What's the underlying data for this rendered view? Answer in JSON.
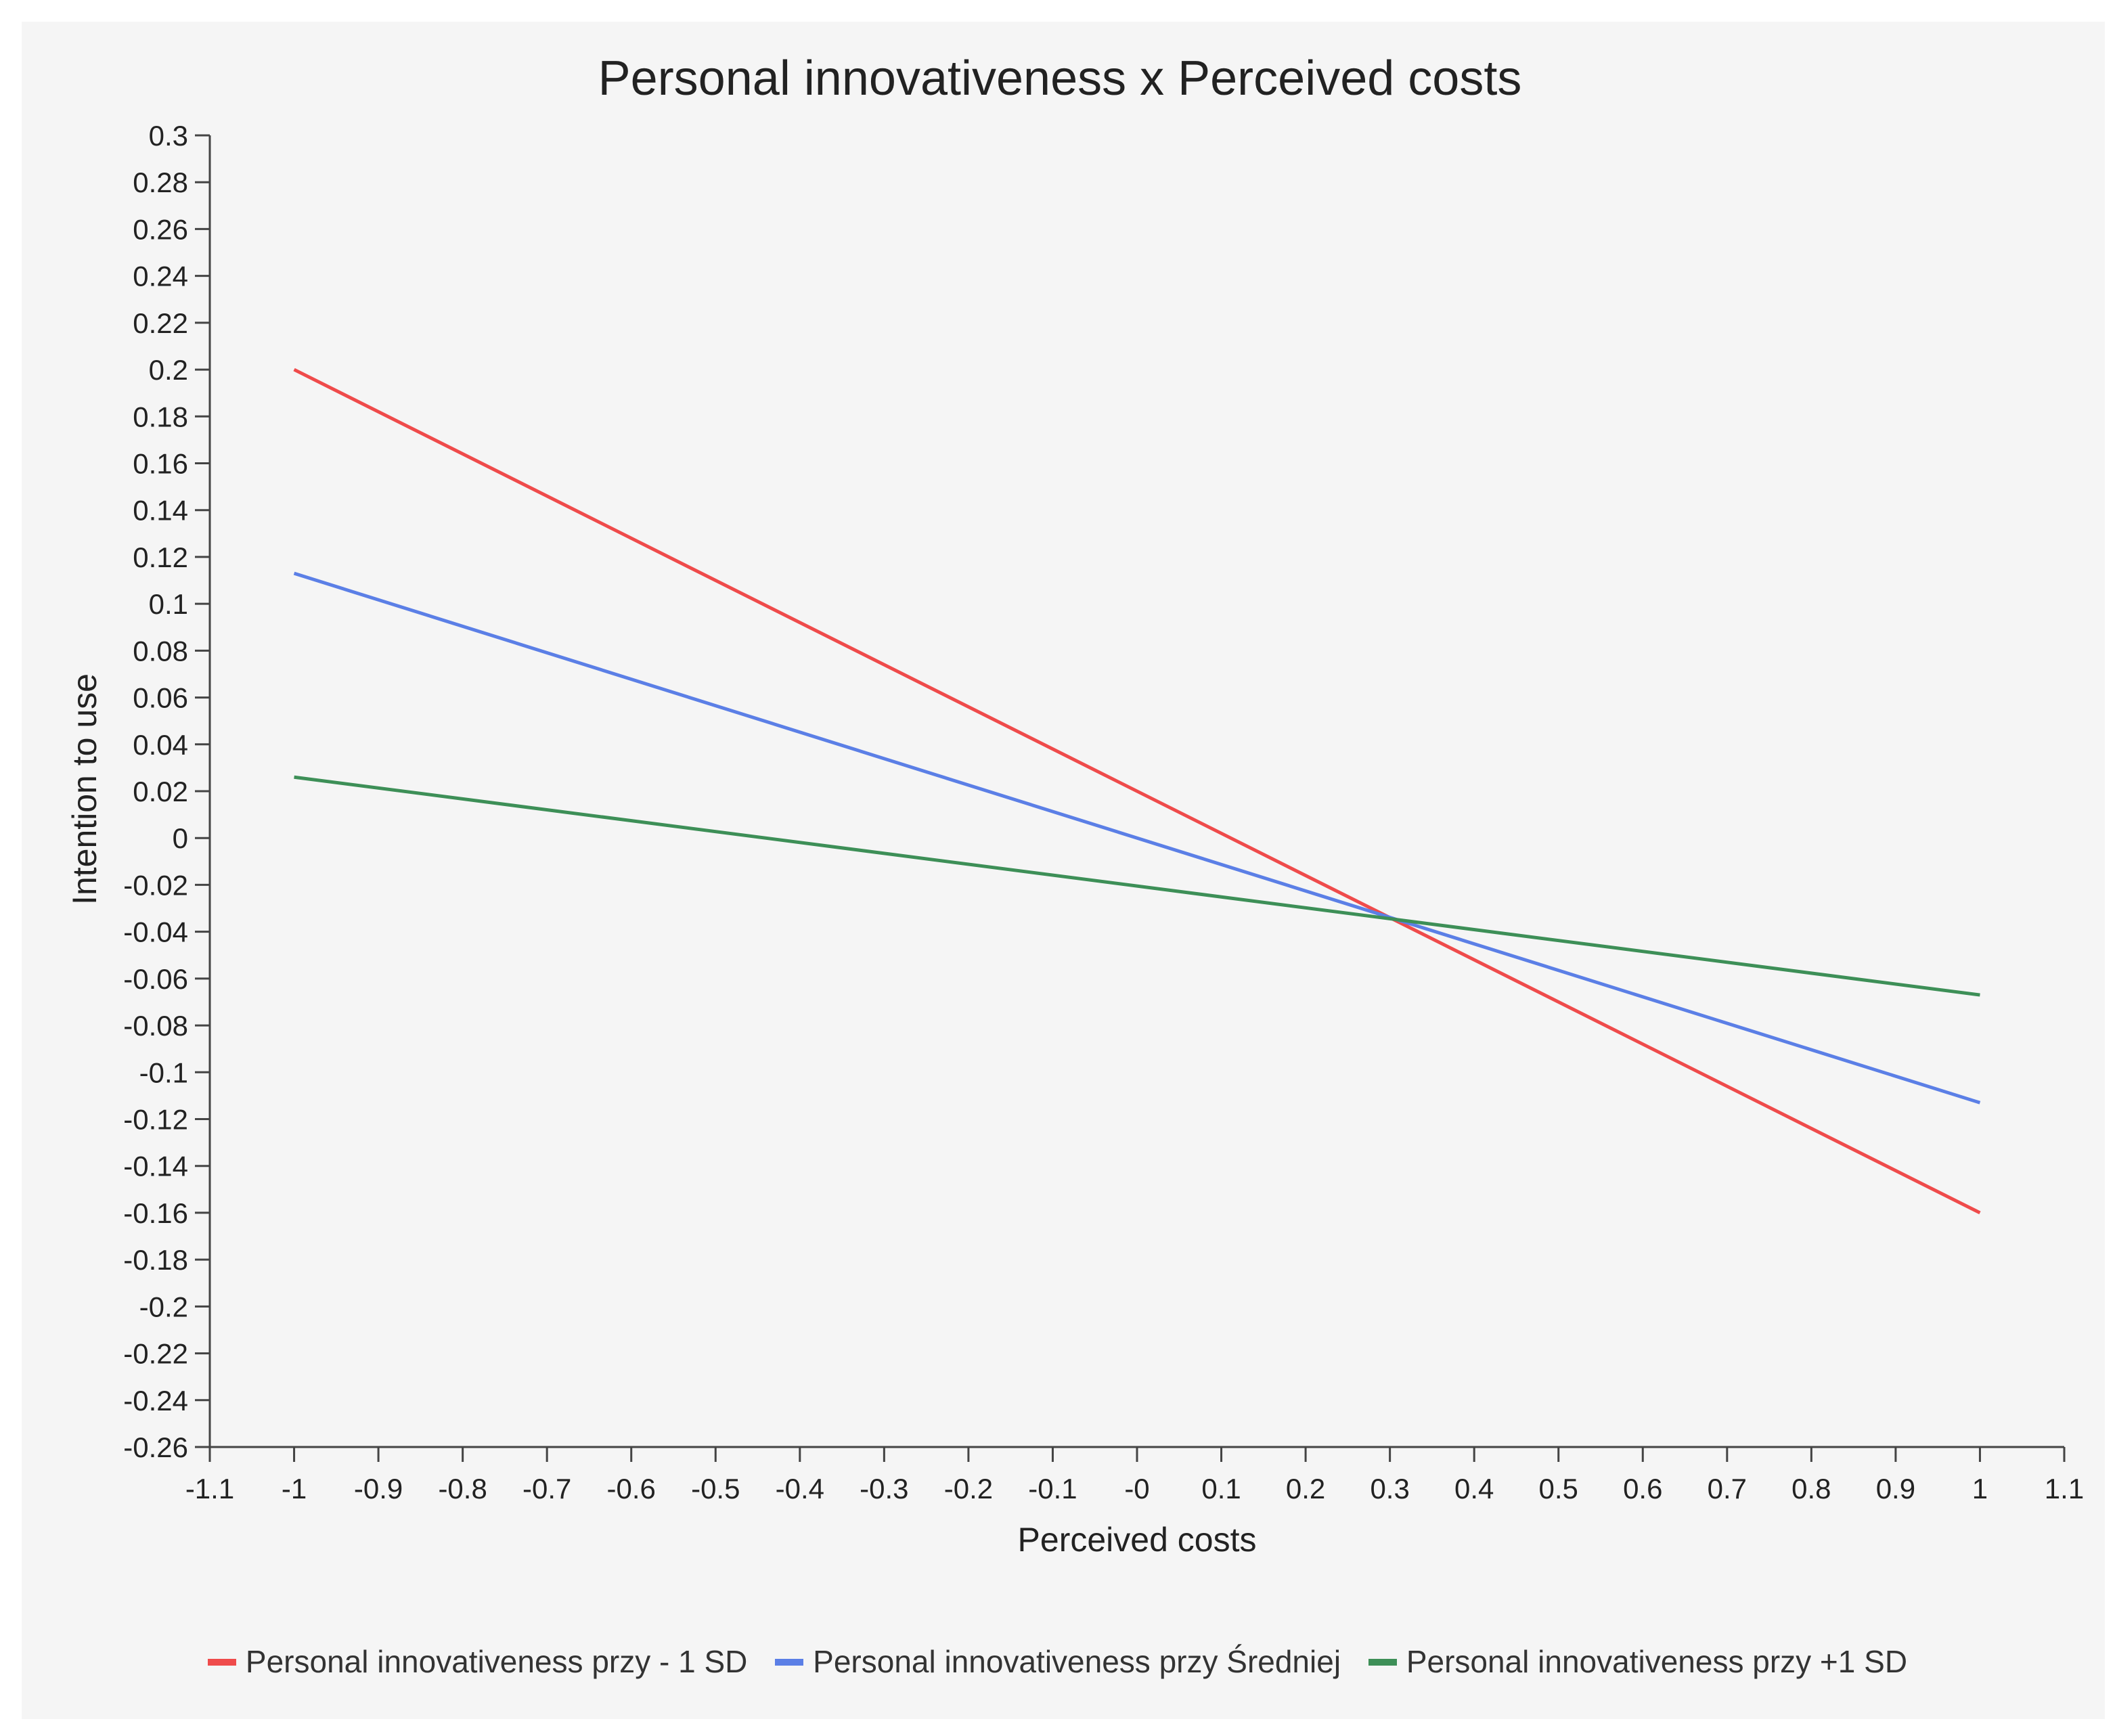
{
  "chart_data": {
    "type": "line",
    "title": "Personal innovativeness x Perceived costs",
    "xlabel": "Perceived costs",
    "ylabel": "Intention to use",
    "xlim": [
      -1.1,
      1.1
    ],
    "ylim": [
      -0.26,
      0.3
    ],
    "x_ticks": [
      -1.1,
      -1,
      -0.9,
      -0.8,
      -0.7,
      -0.6,
      -0.5,
      -0.4,
      -0.3,
      -0.2,
      -0.1,
      0,
      0.1,
      0.2,
      0.3,
      0.4,
      0.5,
      0.6,
      0.7,
      0.8,
      0.9,
      1,
      1.1
    ],
    "x_tick_labels": [
      "-1.1",
      "-1",
      "-0.9",
      "-0.8",
      "-0.7",
      "-0.6",
      "-0.5",
      "-0.4",
      "-0.3",
      "-0.2",
      "-0.1",
      "-0",
      "0.1",
      "0.2",
      "0.3",
      "0.4",
      "0.5",
      "0.6",
      "0.7",
      "0.8",
      "0.9",
      "1",
      "1.1"
    ],
    "y_ticks": [
      0.3,
      0.28,
      0.26,
      0.24,
      0.22,
      0.2,
      0.18,
      0.16,
      0.14,
      0.12,
      0.1,
      0.08,
      0.06,
      0.04,
      0.02,
      0,
      -0.02,
      -0.04,
      -0.06,
      -0.08,
      -0.1,
      -0.12,
      -0.14,
      -0.16,
      -0.18,
      -0.2,
      -0.22,
      -0.24,
      -0.26
    ],
    "y_tick_labels": [
      "0.3",
      "0.28",
      "0.26",
      "0.24",
      "0.22",
      "0.2",
      "0.18",
      "0.16",
      "0.14",
      "0.12",
      "0.1",
      "0.08",
      "0.06",
      "0.04",
      "0.02",
      "0",
      "-0.02",
      "-0.04",
      "-0.06",
      "-0.08",
      "-0.1",
      "-0.12",
      "-0.14",
      "-0.16",
      "-0.18",
      "-0.2",
      "-0.22",
      "-0.24",
      "-0.26"
    ],
    "grid": false,
    "legend_position": "bottom",
    "series": [
      {
        "name": "Personal innovativeness przy - 1 SD",
        "color": "#ef4b4b",
        "x": [
          -1,
          1
        ],
        "y": [
          0.2,
          -0.16
        ]
      },
      {
        "name": "Personal innovativeness przy Średniej",
        "color": "#5b7fe6",
        "x": [
          -1,
          1
        ],
        "y": [
          0.113,
          -0.113
        ]
      },
      {
        "name": "Personal innovativeness przy +1 SD",
        "color": "#3d8f57",
        "x": [
          -1,
          1
        ],
        "y": [
          0.026,
          -0.067
        ]
      }
    ]
  }
}
